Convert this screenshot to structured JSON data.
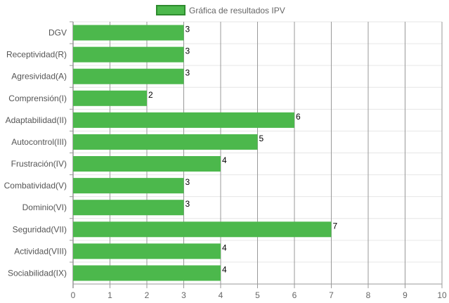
{
  "chart_data": {
    "type": "bar",
    "orientation": "horizontal",
    "title": "",
    "xlabel": "",
    "ylabel": "",
    "categories": [
      "DGV",
      "Receptividad(R)",
      "Agresividad(A)",
      "Comprensión(I)",
      "Adaptabilidad(II)",
      "Autocontrol(III)",
      "Frustración(IV)",
      "Combatividad(V)",
      "Dominio(VI)",
      "Seguridad(VII)",
      "Actividad(VIII)",
      "Sociabilidad(IX)"
    ],
    "series": [
      {
        "name": "Gráfica de resultados IPV",
        "values": [
          3,
          3,
          3,
          2,
          6,
          5,
          4,
          3,
          3,
          7,
          4,
          4
        ],
        "color": "#4cb84c",
        "border_color": "#2e8b2e"
      }
    ],
    "xlim": [
      0,
      10
    ],
    "x_ticks": [
      "0",
      "1",
      "2",
      "3",
      "4",
      "5",
      "6",
      "7",
      "8",
      "9",
      "10"
    ],
    "grid": true,
    "legend_position": "top",
    "data_labels": true
  },
  "colors": {
    "bar_fill": "#4cb84c",
    "legend_border": "#2e8b2e",
    "gridline_vertical": "#999999",
    "gridline_horizontal": "#e6e6e6"
  }
}
